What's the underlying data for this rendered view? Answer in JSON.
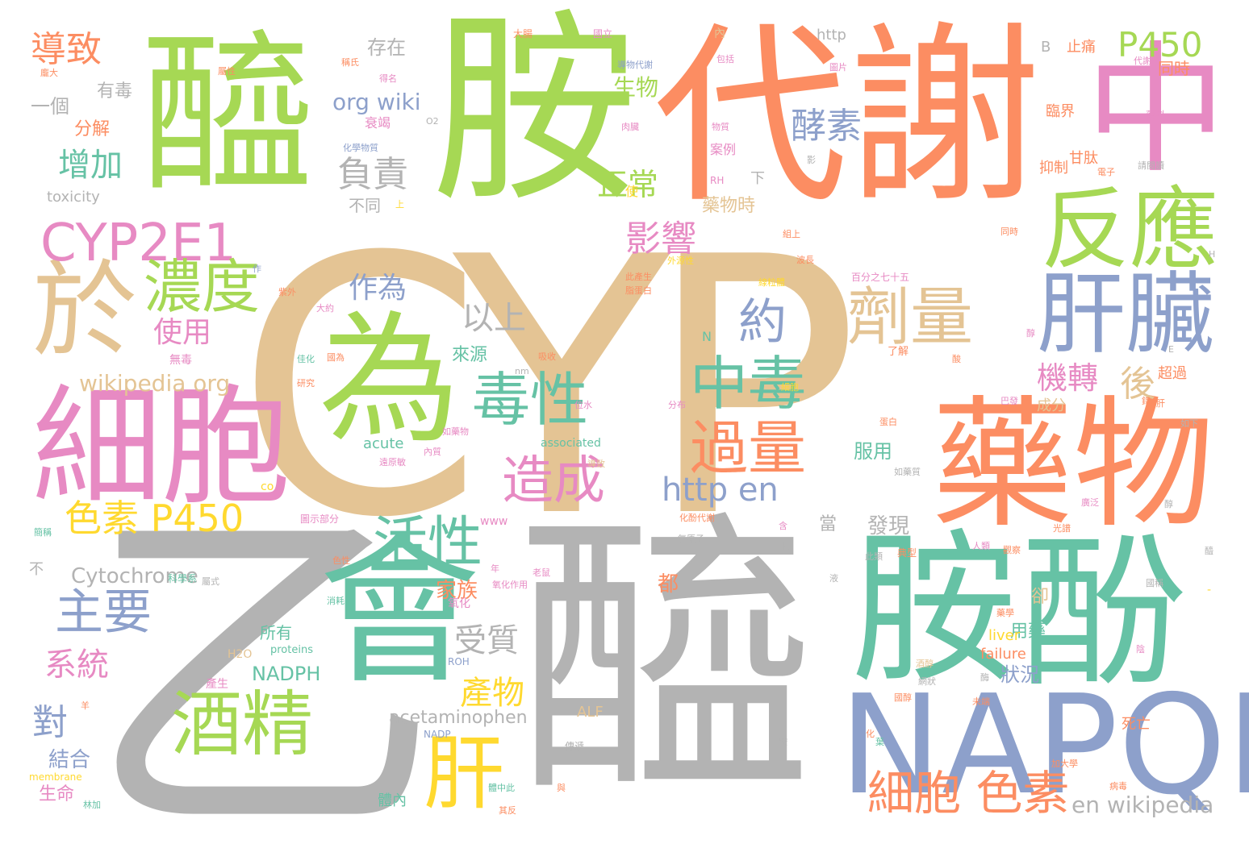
{
  "palette": {
    "tan": "#e4c494",
    "gray": "#b3b3b3",
    "green": "#a6d854",
    "orange": "#fc8d62",
    "teal": "#66c2a5",
    "blue": "#8da0cb",
    "pink": "#e78ac3",
    "yellow": "#ffd92f"
  },
  "words": {
    "w_cyp": "CYP",
    "w_yi": "乙",
    "w_xi1": "醯",
    "w_an1": "胺",
    "w_dx": "代謝",
    "w_xi2": "醯",
    "w_wei": "為",
    "w_hui": "會",
    "w_an2": "胺",
    "w_fen": "酚",
    "w_zhong": "中",
    "w_yw": "藥物",
    "w_xb1": "細胞",
    "w_napqi": "NAPQI",
    "w_fy": "反應",
    "w_gz": "肝臟",
    "w_yu": "於",
    "w_cyp2e1": "CYP2E1",
    "w_jj": "酒精",
    "w_nd": "濃度",
    "w_gan": "肝",
    "w_dx2": "毒性",
    "w_jl": "劑量",
    "w_zd": "中毒",
    "w_gl": "過量",
    "w_hx": "活性",
    "w_zy": "主要",
    "w_zc": "造成",
    "w_xbss": "細胞 色素",
    "w_sp450": "色素 P450",
    "w_p450": "P450",
    "w_dz": "導致",
    "w_ys": "約",
    "w_yx": "影響",
    "w_xj": "酵素",
    "w_fz": "負責",
    "w_zz": "增加",
    "w_http_en": "http en",
    "w_js": "機轉",
    "w_cw": "產物",
    "w_xt": "系統",
    "w_sz": "受質",
    "w_zw": "作為",
    "w_ys2": "以上",
    "w_sy": "使用",
    "w_zc2": "正常",
    "w_wiki_org": "wikipedia org",
    "w_org_wiki": "org wiki",
    "w_en_wiki": "en wikipedia",
    "w_cytochrome": "Cytochrome",
    "w_acetaminophen": "acetaminophen",
    "w_nadph": "NADPH",
    "w_dui": "對",
    "w_hou": "後",
    "w_sw": "生物",
    "w_jh": "結合",
    "w_sm": "生命",
    "w_jz": "家族",
    "w_ly": "來源",
    "w_fx": "發現",
    "w_fy2": "服用",
    "w_yy": "用藥",
    "w_zk": "狀況",
    "w_cz": "存在",
    "w_yg": "一個",
    "w_fj": "分解",
    "w_yd": "有毒",
    "w_bt": "不同",
    "w_ywsj": "藥物時",
    "w_toxicity": "toxicity",
    "w_http": "http",
    "w_acute": "acute",
    "w_failure": "failure",
    "w_liver": "liver",
    "w_alf": "ALF",
    "w_b": "B",
    "w_zd2": "止痛",
    "w_ts": "同時",
    "w_lj": "臨界",
    "w_gt": "甘肽",
    "w_yz": "抑制",
    "w_cg": "超過",
    "w_cf": "成分",
    "w_sw2": "死亡",
    "w_suoyou": "所有",
    "w_que": "卻",
    "w_dou": "都",
    "w_dang": "當",
    "w_assoc": "associated",
    "w_proteins": "proteins",
    "w_membrane": "membrane",
    "w_www": "www",
    "w_rh": "RH",
    "w_roh": "ROH",
    "w_h2o": "H2O",
    "w_nadp": "NADP",
    "w_co": "co",
    "w_n": "N",
    "w_bu": "不",
    "w_xia": "下",
    "w_ti_nei": "體內",
    "w_shi": "使",
    "w_tm": "大腸",
    "w_gl2": "國立",
    "w_dx3": "導物代謝",
    "w_nei": "內",
    "w_bf": "包括",
    "w_ys3": "藥物",
    "w_tp": "圖片",
    "w_yk": "藥科",
    "w_xtr": "衰竭",
    "w_hxw": "化學物質",
    "w_al": "案例",
    "w_rz": "肉臟",
    "w_wt": "物質",
    "w_bf2": "百分之七十五",
    "w_xy": "線粒體",
    "w_yf": "有毒",
    "w_zh": "作用",
    "w_o2": "O2",
    "w_qb": "請閱讀",
    "w_dzf": "電子",
    "w_cs": "常見",
    "w_rb": "人類",
    "w_bh": "病毒",
    "w_cb": "此類",
    "w_wd": "無毒",
    "w_yz2": "研究",
    "w_dy": "大約",
    "w_jd": "精神",
    "w_zx": "醛",
    "w_mo": "酶",
    "w_yh": "氧化",
    "w_yhz": "氧化作用",
    "w_kxx": "科學系",
    "w_cm": "產生",
    "w_zh2": "重",
    "w_hh": "化學",
    "w_xf": "吸收",
    "w_nm": "nm",
    "w_fb": "分布",
    "w_sf": "氧原子",
    "w_ld": "了解",
    "w_dq": "蛋白",
    "w_fr": "如下",
    "w_jx": "典型",
    "w_qt": "其反",
    "w_lj2": "林加",
    "w_cbm": "傳遞",
    "w_tzh": "體中此",
    "w_mf": "酶學",
    "w_fz2": "幾乎",
    "w_jd2": "加大學",
    "w_sd": "羊",
    "w_xf2": "年",
    "w_sl": "肝臟",
    "w_bc": "老鼠",
    "w_ys4": "導致",
    "w_yq": "屬式",
    "w_xh": "消耗",
    "w_yc": "色性",
    "w_tf": "圖示部分",
    "w_jt": "會",
    "w_hf": "化酚代謝",
    "w_ck": "未端",
    "w_sq": "生產",
    "w_wb": "外源性",
    "w_hd": "脂蛋白",
    "w_ms": "此產生",
    "w_zl": "組上",
    "w_zc3": "波長",
    "w_ty": "酶",
    "w_kh": "可能",
    "w_ys5": "過渡",
    "w_dl": "毒",
    "w_yl": "液",
    "w_mc": "酸",
    "w_jz2": "紫外",
    "w_h": "H",
    "w_e": "E",
    "w_dash": "-",
    "w_xs": "國稱",
    "w_gx": "化",
    "w_ys6": "有機",
    "w_xp": "肝",
    "w_hyw": "如藥物",
    "w_fx2": "酮",
    "w_yr": "化",
    "w_bw": "巴發",
    "w_zl2": "結",
    "w_jk": "藥學",
    "w_xz": "位水",
    "w_gs": "觀察",
    "w_xw": "作",
    "w_jy": "醇",
    "w_zd3": "細胞",
    "w_dr": "得名",
    "w_xbi": "稱氏",
    "w_lt": "影",
    "w_ts2": "屬性",
    "w_xr": "與",
    "w_th": "佳化",
    "w_pj": "醇",
    "w_gq": "國醇",
    "w_hj": "如藥質",
    "w_jj2": "光譜",
    "w_ch": "酒醇",
    "w_rq": "病毒",
    "w_kt": "簡稱",
    "w_mx": "廣泛",
    "w_bt2": "國為",
    "w_lc": "陰",
    "w_sg": "遠原敏",
    "w_jb": "內質",
    "w_tt": "網狀",
    "w_ah": "含",
    "w_hs": "化",
    "w_ll": "上",
    "w_qz": "代謝",
    "w_ys7": "醯",
    "w_hx2": "龐大",
    "w_rx": "葉",
    "w_zz2": "錯",
    "w_bb": "胺"
  }
}
